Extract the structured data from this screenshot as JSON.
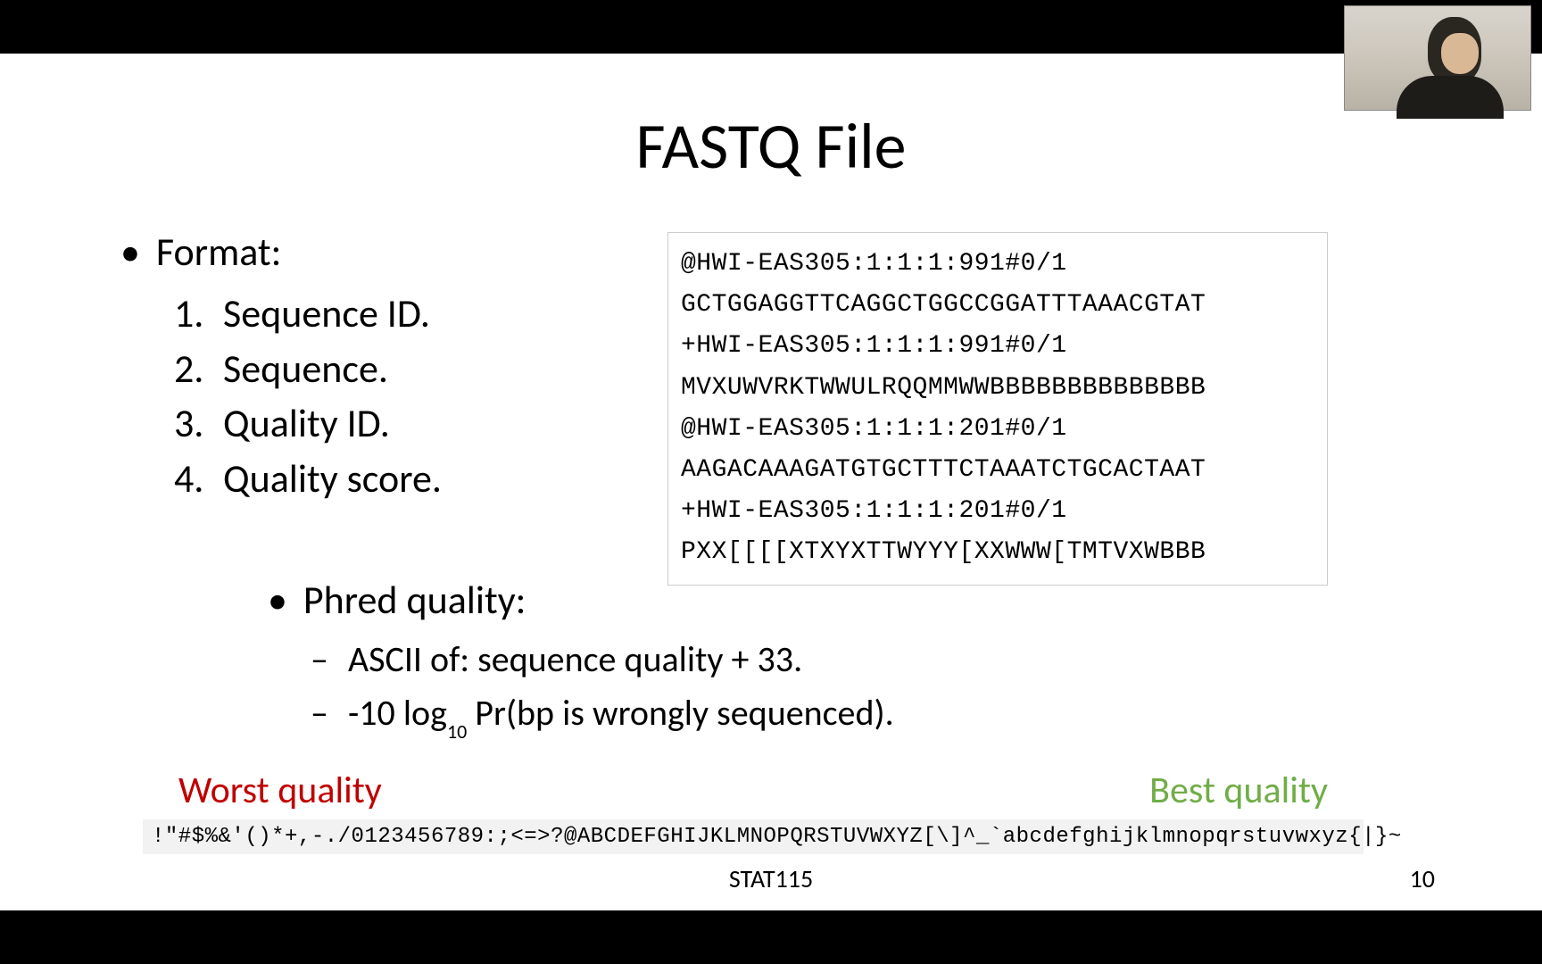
{
  "title": "FASTQ File",
  "format": {
    "header": "Format:",
    "items": [
      "Sequence ID.",
      "Sequence.",
      "Quality ID.",
      "Quality score."
    ]
  },
  "code_lines": [
    "@HWI-EAS305:1:1:1:991#0/1",
    "GCTGGAGGTTCAGGCTGGCCGGATTTAAACGTAT",
    "+HWI-EAS305:1:1:1:991#0/1",
    "MVXUWVRKTWWULRQQMMWWBBBBBBBBBBBBBB",
    "@HWI-EAS305:1:1:1:201#0/1",
    "AAGACAAAGATGTGCTTTCTAAATCTGCACTAAT",
    "+HWI-EAS305:1:1:1:201#0/1",
    "PXX[[[[XTXYXTTWYYY[XXWWW[TMTVXWBBB"
  ],
  "phred": {
    "header": "Phred quality:",
    "items": [
      "ASCII of: sequence quality + 33.",
      "-10 log__SUB__10__ Pr(bp is wrongly sequenced)."
    ]
  },
  "quality_labels": {
    "worst": "Worst quality",
    "best": "Best quality"
  },
  "ascii_bar": "!\"#$%&'()*+,-./0123456789:;<=>?@ABCDEFGHIJKLMNOPQRSTUVWXYZ[\\]^_`abcdefghijklmnopqrstuvwxyz{|}~",
  "footer": {
    "course": "STAT115",
    "page": "10"
  },
  "colors": {
    "worst": "#c00000",
    "best": "#70ad47",
    "ascii_bg": "#f2f2f2",
    "code_border": "#cccccc"
  }
}
